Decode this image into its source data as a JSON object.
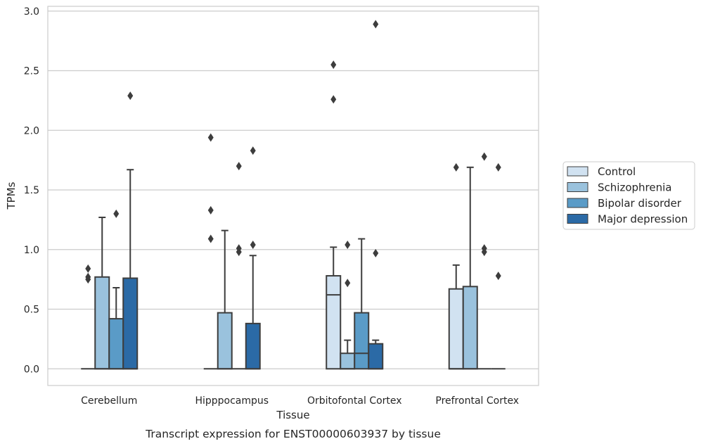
{
  "chart_data": {
    "type": "box",
    "caption": "Transcript expression for ENST00000603937 by tissue",
    "xlabel": "Tissue",
    "ylabel": "TPMs",
    "ylim": [
      -0.14,
      3.04
    ],
    "yticks": [
      "0.0",
      "0.5",
      "1.0",
      "1.5",
      "2.0",
      "2.5",
      "3.0"
    ],
    "grid": true,
    "legend_position": "right",
    "categories": [
      "Cerebellum",
      "Hipppocampus",
      "Orbitofontal Cortex",
      "Prefrontal Cortex"
    ],
    "series": [
      {
        "name": "Control",
        "color": "#d1e2f1",
        "boxes": [
          {
            "q1": 0,
            "median": 0,
            "q3": 0,
            "whisker_low": 0,
            "whisker_high": 0,
            "outliers": [
              0.84,
              0.77,
              0.75
            ]
          },
          {
            "q1": 0,
            "median": 0,
            "q3": 0,
            "whisker_low": 0,
            "whisker_high": 0,
            "outliers": [
              1.94,
              1.33,
              1.09
            ]
          },
          {
            "q1": 0,
            "median": 0.62,
            "q3": 0.78,
            "whisker_low": 0,
            "whisker_high": 1.02,
            "outliers": [
              2.55,
              2.26
            ]
          },
          {
            "q1": 0,
            "median": 0,
            "q3": 0.67,
            "whisker_low": 0,
            "whisker_high": 0.87,
            "outliers": [
              1.69
            ]
          }
        ]
      },
      {
        "name": "Schizophrenia",
        "color": "#9ac2dd",
        "boxes": [
          {
            "q1": 0,
            "median": 0,
            "q3": 0.77,
            "whisker_low": 0,
            "whisker_high": 1.27,
            "outliers": []
          },
          {
            "q1": 0,
            "median": 0,
            "q3": 0.47,
            "whisker_low": 0,
            "whisker_high": 1.16,
            "outliers": []
          },
          {
            "q1": 0,
            "median": 0,
            "q3": 0.13,
            "whisker_low": 0,
            "whisker_high": 0.24,
            "outliers": [
              1.04,
              0.72
            ]
          },
          {
            "q1": 0,
            "median": 0,
            "q3": 0.69,
            "whisker_low": 0,
            "whisker_high": 1.69,
            "outliers": []
          }
        ]
      },
      {
        "name": "Bipolar disorder",
        "color": "#5a9bc7",
        "boxes": [
          {
            "q1": 0,
            "median": 0,
            "q3": 0.42,
            "whisker_low": 0,
            "whisker_high": 0.68,
            "outliers": [
              1.3
            ]
          },
          {
            "q1": 0,
            "median": 0,
            "q3": 0,
            "whisker_low": 0,
            "whisker_high": 0,
            "outliers": [
              1.7,
              1.01,
              0.98
            ]
          },
          {
            "q1": 0,
            "median": 0.13,
            "q3": 0.47,
            "whisker_low": 0,
            "whisker_high": 1.09,
            "outliers": []
          },
          {
            "q1": 0,
            "median": 0,
            "q3": 0,
            "whisker_low": 0,
            "whisker_high": 0,
            "outliers": [
              1.78,
              1.01,
              0.98
            ]
          }
        ]
      },
      {
        "name": "Major depression",
        "color": "#2b6aa6",
        "boxes": [
          {
            "q1": 0,
            "median": 0,
            "q3": 0.76,
            "whisker_low": 0,
            "whisker_high": 1.67,
            "outliers": [
              2.29
            ]
          },
          {
            "q1": 0,
            "median": 0,
            "q3": 0.38,
            "whisker_low": 0,
            "whisker_high": 0.95,
            "outliers": [
              1.83,
              1.04
            ]
          },
          {
            "q1": 0,
            "median": 0,
            "q3": 0.21,
            "whisker_low": 0,
            "whisker_high": 0.24,
            "outliers": [
              2.89,
              0.97
            ]
          },
          {
            "q1": 0,
            "median": 0,
            "q3": 0,
            "whisker_low": 0,
            "whisker_high": 0,
            "outliers": [
              1.69,
              0.78
            ]
          }
        ]
      }
    ]
  }
}
